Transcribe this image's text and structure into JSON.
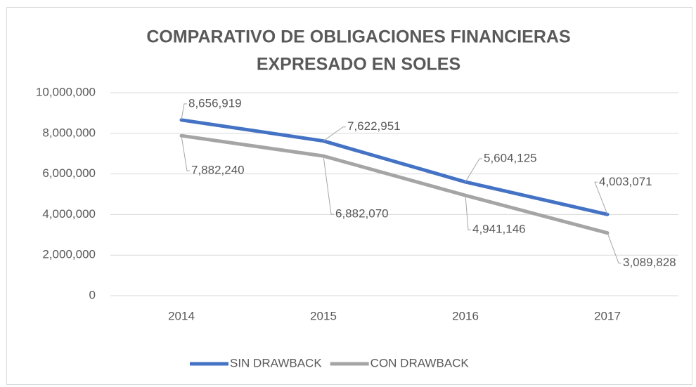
{
  "chart_data": {
    "type": "line",
    "title": [
      "COMPARATIVO DE OBLIGACIONES FINANCIERAS",
      "EXPRESADO EN SOLES"
    ],
    "categories": [
      "2014",
      "2015",
      "2016",
      "2017"
    ],
    "series": [
      {
        "name": "SIN DRAWBACK",
        "color": "#4472c4",
        "values": [
          8656919,
          7622951,
          5604125,
          4003071
        ],
        "value_labels": [
          "8,656,919",
          "7,622,951",
          "5,604,125",
          "4,003,071"
        ]
      },
      {
        "name": "CON DRAWBACK",
        "color": "#a5a5a5",
        "values": [
          7882240,
          6882070,
          4941146,
          3089828
        ],
        "value_labels": [
          "7,882,240",
          "6,882,070",
          "4,941,146",
          "3,089,828"
        ]
      }
    ],
    "ylim": [
      0,
      10000000
    ],
    "yticks": [
      {
        "value": 0,
        "label": "0"
      },
      {
        "value": 2000000,
        "label": "2,000,000"
      },
      {
        "value": 4000000,
        "label": "4,000,000"
      },
      {
        "value": 6000000,
        "label": "6,000,000"
      },
      {
        "value": 8000000,
        "label": "8,000,000"
      },
      {
        "value": 10000000,
        "label": "10,000,000"
      }
    ],
    "grid": true,
    "legend": "bottom"
  }
}
